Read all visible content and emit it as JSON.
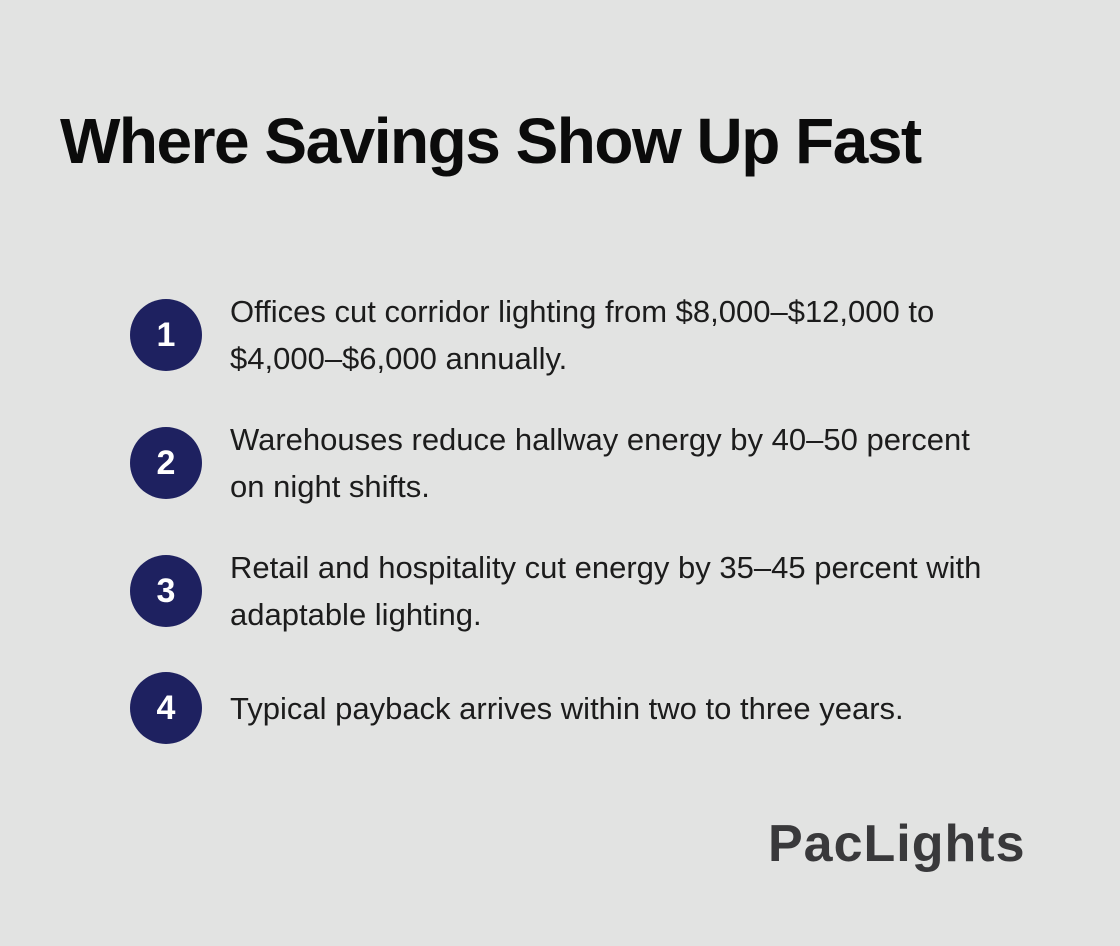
{
  "page": {
    "background": "#e2e3e2",
    "accent": "#1e2160",
    "title_color": "#0b0b0b",
    "text_color": "#1c1c1c",
    "logo_color": "#39393b"
  },
  "title": "Where Savings Show Up Fast",
  "items": [
    {
      "number": "1",
      "lines": [
        "Offices cut corridor lighting from $8,000–$12,000 to",
        "$4,000–$6,000 annually."
      ]
    },
    {
      "number": "2",
      "lines": [
        "Warehouses reduce hallway energy by 40–50 percent",
        "on night shifts."
      ]
    },
    {
      "number": "3",
      "lines": [
        "Retail and hospitality cut energy by 35–45 percent with",
        "adaptable lighting."
      ]
    },
    {
      "number": "4",
      "lines": [
        "Typical payback arrives within two to three years."
      ]
    }
  ],
  "logo": {
    "text": "PacLights"
  }
}
